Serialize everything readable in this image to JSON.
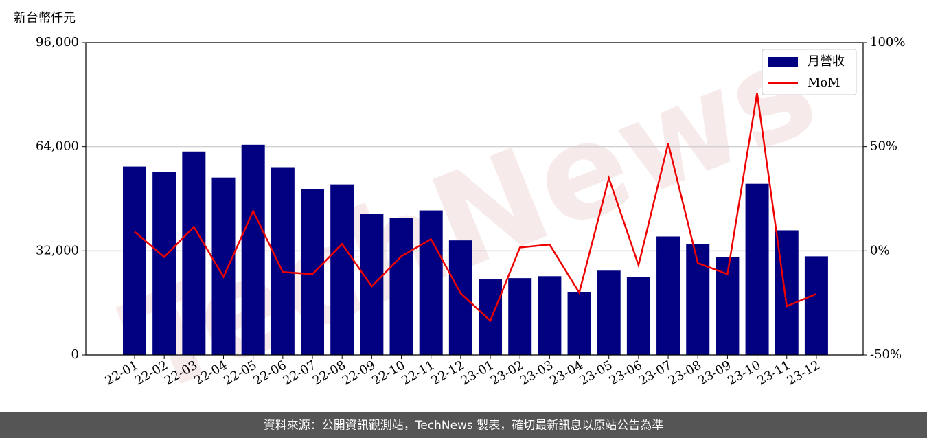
{
  "chart_data": {
    "type": "bar_line",
    "y_label": "新台幣仟元",
    "watermark": "TechNews",
    "footer": "資料來源：公開資訊觀測站，TechNews 製表，確切最新訊息以原站公告為準",
    "categories": [
      "22-01",
      "22-02",
      "22-03",
      "22-04",
      "22-05",
      "22-06",
      "22-07",
      "22-08",
      "22-09",
      "22-10",
      "22-11",
      "22-12",
      "23-01",
      "23-02",
      "23-03",
      "23-04",
      "23-05",
      "23-06",
      "23-07",
      "23-08",
      "23-09",
      "23-10",
      "23-11",
      "23-12"
    ],
    "series": [
      {
        "name": "月營收",
        "type": "bar",
        "color": "#000080",
        "values": [
          57900,
          56200,
          62500,
          54500,
          64600,
          57700,
          50900,
          52400,
          43400,
          42100,
          44400,
          35200,
          23200,
          23600,
          24200,
          19200,
          25900,
          24000,
          36400,
          34100,
          30100,
          52600,
          38300,
          30300
        ]
      },
      {
        "name": "MoM",
        "type": "line",
        "axis": "y2",
        "color": "#ee0000",
        "values": [
          9.2,
          -3.0,
          11.5,
          -12.5,
          19.1,
          -10.2,
          -11.2,
          3.3,
          -17.1,
          -2.6,
          5.6,
          -20.4,
          -33.6,
          1.6,
          3.0,
          -20.1,
          34.9,
          -6.9,
          51.6,
          -5.9,
          -11.2,
          75.7,
          -26.6,
          -20.7
        ]
      }
    ],
    "ylim": [
      0,
      96000
    ],
    "yticks": [
      0,
      {
        "value": 32000,
        "label": "32,000"
      },
      {
        "value": 64000,
        "label": "64,000"
      },
      {
        "value": 96000,
        "label": "96,000"
      }
    ],
    "y2lim": [
      -50,
      100
    ],
    "y2ticks": [
      {
        "value": -50,
        "label": "-50%"
      },
      {
        "value": 0,
        "label": "0%"
      },
      {
        "value": 50,
        "label": "50%"
      },
      {
        "value": 100,
        "label": "100%"
      }
    ],
    "grid": true,
    "legend": "upper right"
  }
}
